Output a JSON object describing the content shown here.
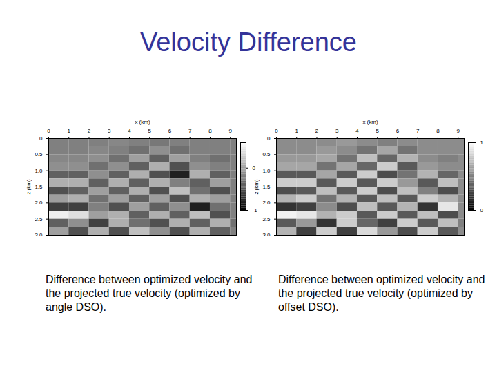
{
  "title": "Velocity Difference",
  "chart_data": [
    {
      "type": "heatmap",
      "xlabel": "x (km)",
      "ylabel": "z (km)",
      "caption": "Difference between optimized velocity and the projected true velocity (optimized by angle DSO).",
      "xlim": [
        0,
        9.3
      ],
      "ylim": [
        0,
        3
      ],
      "xticks": [
        0,
        1,
        2,
        3,
        4,
        5,
        6,
        7,
        8,
        9
      ],
      "yticks": [
        0,
        0.5,
        {
          "value": 1,
          "label": "1.0"
        },
        1.5,
        {
          "value": 2,
          "label": "2.0"
        },
        2.5,
        {
          "value": 3,
          "label": "3.0"
        }
      ],
      "x_edges": [
        0,
        1,
        2,
        3,
        4,
        5,
        6,
        7,
        8,
        9,
        9.3
      ],
      "z_edges": [
        0,
        0.25,
        0.5,
        0.75,
        1,
        1.25,
        1.5,
        1.75,
        2,
        2.25,
        2.5,
        2.75,
        3
      ],
      "cells": [
        [
          -0.2,
          -0.2,
          -0.2,
          -0.15,
          -0.2,
          -0.25,
          -0.2,
          -0.2,
          -0.2,
          -0.2
        ],
        [
          -0.2,
          -0.2,
          -0.15,
          -0.2,
          -0.3,
          -0.1,
          -0.3,
          -0.2,
          -0.2,
          -0.2
        ],
        [
          -0.15,
          -0.15,
          -0.1,
          -0.3,
          0.0,
          -0.4,
          0.0,
          -0.2,
          -0.3,
          -0.2
        ],
        [
          -0.1,
          -0.1,
          -0.3,
          -0.1,
          -0.4,
          0.1,
          -0.5,
          -0.1,
          -0.2,
          -0.2
        ],
        [
          -0.4,
          -0.4,
          -0.1,
          -0.4,
          0.1,
          -0.5,
          -0.8,
          0.1,
          -0.4,
          -0.2
        ],
        [
          0.1,
          0.1,
          -0.4,
          0.1,
          -0.4,
          0.1,
          -0.2,
          -0.4,
          0.0,
          -0.2
        ],
        [
          -0.5,
          -0.4,
          0.0,
          -0.4,
          0.1,
          -0.5,
          0.2,
          -0.3,
          -0.5,
          -0.2
        ],
        [
          0.0,
          0.1,
          -0.3,
          0.0,
          -0.4,
          0.0,
          -0.5,
          0.1,
          0.0,
          -0.2
        ],
        [
          -0.6,
          -0.6,
          -0.2,
          -0.5,
          0.0,
          -0.4,
          -0.1,
          -0.8,
          -0.3,
          -0.2
        ],
        [
          0.5,
          0.4,
          0.0,
          0.1,
          -0.4,
          0.1,
          -0.4,
          0.2,
          -0.5,
          -0.2
        ],
        [
          -0.4,
          -0.1,
          -0.6,
          0.1,
          -0.3,
          -0.5,
          0.1,
          -0.4,
          0.1,
          -0.3
        ],
        [
          0.0,
          -0.5,
          0.1,
          -0.5,
          0.2,
          -0.1,
          -0.5,
          0.1,
          -0.4,
          -0.2
        ]
      ],
      "colorbar_lim": [
        -1,
        0.6
      ],
      "colorbar_ticks": [
        -1,
        0
      ]
    },
    {
      "type": "heatmap",
      "xlabel": "x (km)",
      "ylabel": "z (km)",
      "caption": "Difference between optimized velocity and the projected true velocity (optimized by offset DSO).",
      "xlim": [
        0,
        9.3
      ],
      "ylim": [
        0,
        3
      ],
      "xticks": [
        0,
        1,
        2,
        3,
        4,
        5,
        6,
        7,
        8,
        9
      ],
      "yticks": [
        0,
        0.5,
        {
          "value": 1,
          "label": "1.0"
        },
        1.5,
        {
          "value": 2,
          "label": "2.0"
        },
        2.5,
        {
          "value": 3,
          "label": "3.0"
        }
      ],
      "x_edges": [
        0,
        1,
        2,
        3,
        4,
        5,
        6,
        7,
        8,
        9,
        9.3
      ],
      "z_edges": [
        0,
        0.25,
        0.5,
        0.75,
        1,
        1.25,
        1.5,
        1.75,
        2,
        2.25,
        2.5,
        2.75,
        3
      ],
      "cells": [
        [
          0.55,
          0.55,
          0.55,
          0.6,
          0.55,
          0.5,
          0.55,
          0.55,
          0.55,
          0.55
        ],
        [
          0.55,
          0.55,
          0.6,
          0.55,
          0.45,
          0.65,
          0.45,
          0.55,
          0.55,
          0.55
        ],
        [
          0.6,
          0.6,
          0.65,
          0.45,
          0.75,
          0.4,
          0.7,
          0.55,
          0.5,
          0.55
        ],
        [
          0.65,
          0.65,
          0.45,
          0.65,
          0.4,
          0.8,
          0.35,
          0.6,
          0.55,
          0.55
        ],
        [
          0.35,
          0.35,
          0.65,
          0.35,
          0.8,
          0.3,
          0.45,
          0.7,
          0.4,
          0.55
        ],
        [
          0.8,
          0.8,
          0.35,
          0.8,
          0.35,
          0.8,
          0.6,
          0.35,
          0.75,
          0.55
        ],
        [
          0.3,
          0.35,
          0.75,
          0.35,
          0.8,
          0.3,
          0.75,
          0.5,
          0.3,
          0.55
        ],
        [
          0.7,
          0.8,
          0.45,
          0.7,
          0.35,
          0.75,
          0.35,
          0.8,
          0.7,
          0.55
        ],
        [
          0.2,
          0.25,
          0.55,
          0.3,
          0.75,
          0.35,
          0.7,
          0.2,
          0.9,
          0.55
        ],
        [
          0.95,
          0.9,
          0.7,
          0.8,
          0.35,
          0.8,
          0.35,
          0.75,
          0.3,
          0.55
        ],
        [
          0.35,
          0.6,
          0.2,
          0.8,
          0.4,
          0.25,
          0.8,
          0.35,
          0.75,
          0.5
        ],
        [
          0.7,
          0.25,
          0.8,
          0.25,
          0.85,
          0.6,
          0.3,
          0.8,
          0.35,
          0.55
        ]
      ],
      "colorbar_lim": [
        0,
        1
      ],
      "colorbar_ticks": [
        0,
        1
      ]
    }
  ]
}
